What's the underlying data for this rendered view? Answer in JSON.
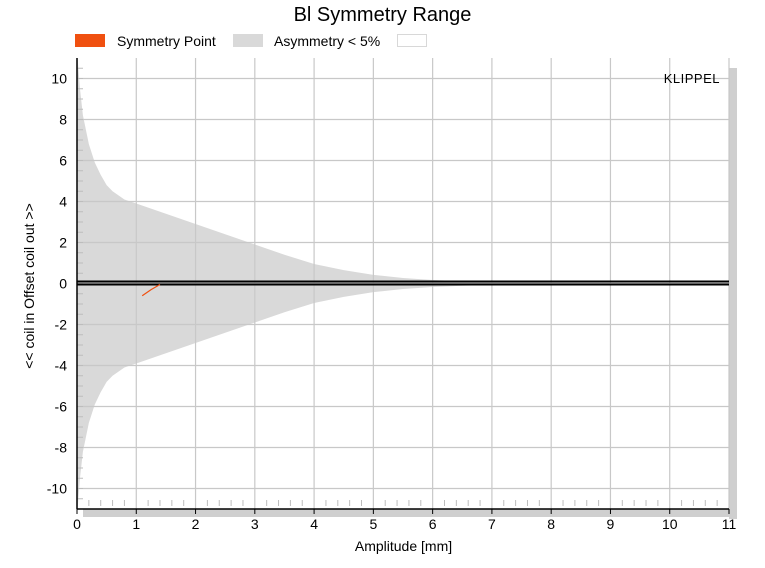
{
  "chart_data": {
    "type": "area",
    "title": "Bl Symmetry Range",
    "xlabel": "Amplitude [mm]",
    "ylabel": "<< coil in     Offset     coil out >>",
    "xlim": [
      0,
      11
    ],
    "ylim": [
      -11,
      11
    ],
    "x_ticks": [
      "0",
      "1",
      "2",
      "3",
      "4",
      "5",
      "6",
      "7",
      "8",
      "9",
      "10",
      "11"
    ],
    "y_ticks": [
      "-10",
      "-8",
      "-6",
      "-4",
      "-2",
      "0",
      "2",
      "4",
      "6",
      "8",
      "10"
    ],
    "grid": true,
    "legend_position": "top-left",
    "watermark": "KLIPPEL",
    "colors": {
      "symmetry_point": "#f05010",
      "asymmetry_band": "#d9d9d9",
      "third_series": "#ffffff",
      "offset_line": "#000000"
    },
    "series": [
      {
        "name": "Symmetry Point",
        "x": [
          1.1,
          1.25,
          1.4
        ],
        "y": [
          -0.6,
          -0.3,
          -0.05
        ]
      },
      {
        "name": "Asymmetry < 5%",
        "x": [
          0.01,
          0.05,
          0.1,
          0.2,
          0.3,
          0.4,
          0.5,
          0.6,
          0.7,
          0.8,
          0.9,
          1.0,
          1.5,
          2.0,
          2.5,
          3.0,
          3.5,
          4.0,
          4.5,
          5.0,
          5.5,
          6.0,
          6.5,
          7.0,
          8.0,
          9.0,
          10.0,
          11.0
        ],
        "upper": [
          11.0,
          9.5,
          8.2,
          6.8,
          5.9,
          5.3,
          4.8,
          4.5,
          4.3,
          4.1,
          4.0,
          3.9,
          3.4,
          2.9,
          2.4,
          1.9,
          1.4,
          0.95,
          0.65,
          0.42,
          0.27,
          0.17,
          0.11,
          0.07,
          0.04,
          0.03,
          0.02,
          0.02
        ],
        "lower": [
          -11.0,
          -9.5,
          -8.2,
          -6.8,
          -5.9,
          -5.3,
          -4.8,
          -4.5,
          -4.3,
          -4.1,
          -4.0,
          -3.9,
          -3.4,
          -2.9,
          -2.4,
          -1.9,
          -1.4,
          -0.95,
          -0.65,
          -0.42,
          -0.27,
          -0.17,
          -0.11,
          -0.07,
          -0.04,
          -0.03,
          -0.02,
          -0.02
        ]
      },
      {
        "name": "",
        "x": [],
        "y": []
      }
    ],
    "offset_lines": [
      0.1,
      -0.05
    ]
  }
}
